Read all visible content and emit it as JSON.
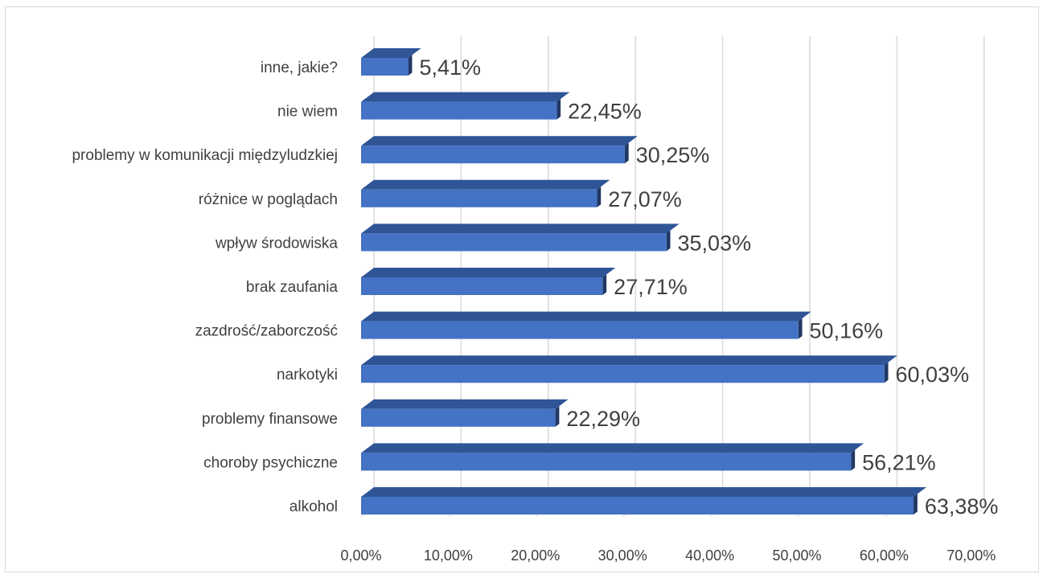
{
  "chart_data": {
    "type": "bar",
    "orientation": "horizontal",
    "style": "3d",
    "categories": [
      "inne, jakie?",
      "nie wiem",
      "problemy w komunikacji międzyludzkiej",
      "różnice w poglądach",
      "wpływ środowiska",
      "brak zaufania",
      "zazdrość/zaborczość",
      "narkotyki",
      "problemy finansowe",
      "choroby psychiczne",
      "alkohol"
    ],
    "values": [
      5.41,
      22.45,
      30.25,
      27.07,
      35.03,
      27.71,
      50.16,
      60.03,
      22.29,
      56.21,
      63.38
    ],
    "data_labels": [
      "5,41%",
      "22,45%",
      "30,25%",
      "27,07%",
      "35,03%",
      "27,71%",
      "50,16%",
      "60,03%",
      "22,29%",
      "56,21%",
      "63,38%"
    ],
    "xlim": [
      0,
      70
    ],
    "ticks": [
      0,
      10,
      20,
      30,
      40,
      50,
      60,
      70
    ],
    "tick_labels": [
      "0,00%",
      "10,00%",
      "20,00%",
      "30,00%",
      "40,00%",
      "50,00%",
      "60,00%",
      "70,00%"
    ],
    "grid": true,
    "legend": "none",
    "colors": {
      "bar_front": "#4472c4",
      "bar_top": "#2f5597",
      "bar_side": "#203864",
      "grid": "#d9d9d9",
      "text": "#404040"
    }
  }
}
